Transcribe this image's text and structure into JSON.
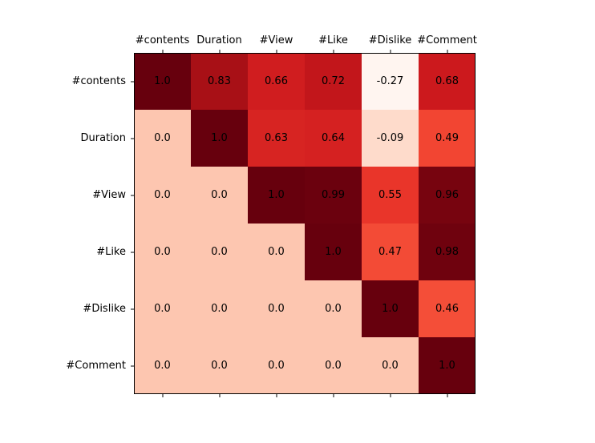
{
  "chart_data": {
    "type": "heatmap",
    "title": "",
    "xlabel": "",
    "ylabel": "",
    "colormap": "Reds",
    "color_range": [
      -0.27,
      1.0
    ],
    "x_axis_position": "top",
    "grid": false,
    "columns": [
      "#contents",
      "Duration",
      "#View",
      "#Like",
      "#Dislike",
      "#Comment"
    ],
    "rows": [
      "#contents",
      "Duration",
      "#View",
      "#Like",
      "#Dislike",
      "#Comment"
    ],
    "values": [
      [
        1.0,
        0.83,
        0.66,
        0.72,
        -0.27,
        0.68
      ],
      [
        0.0,
        1.0,
        0.63,
        0.64,
        -0.09,
        0.49
      ],
      [
        0.0,
        0.0,
        1.0,
        0.99,
        0.55,
        0.96
      ],
      [
        0.0,
        0.0,
        0.0,
        1.0,
        0.47,
        0.98
      ],
      [
        0.0,
        0.0,
        0.0,
        0.0,
        1.0,
        0.46
      ],
      [
        0.0,
        0.0,
        0.0,
        0.0,
        0.0,
        1.0
      ]
    ],
    "labels": [
      [
        "1.0",
        "0.83",
        "0.66",
        "0.72",
        "-0.27",
        "0.68"
      ],
      [
        "0.0",
        "1.0",
        "0.63",
        "0.64",
        "-0.09",
        "0.49"
      ],
      [
        "0.0",
        "0.0",
        "1.0",
        "0.99",
        "0.55",
        "0.96"
      ],
      [
        "0.0",
        "0.0",
        "0.0",
        "1.0",
        "0.47",
        "0.98"
      ],
      [
        "0.0",
        "0.0",
        "0.0",
        "0.0",
        "1.0",
        "0.46"
      ],
      [
        "0.0",
        "0.0",
        "0.0",
        "0.0",
        "0.0",
        "1.0"
      ]
    ]
  }
}
